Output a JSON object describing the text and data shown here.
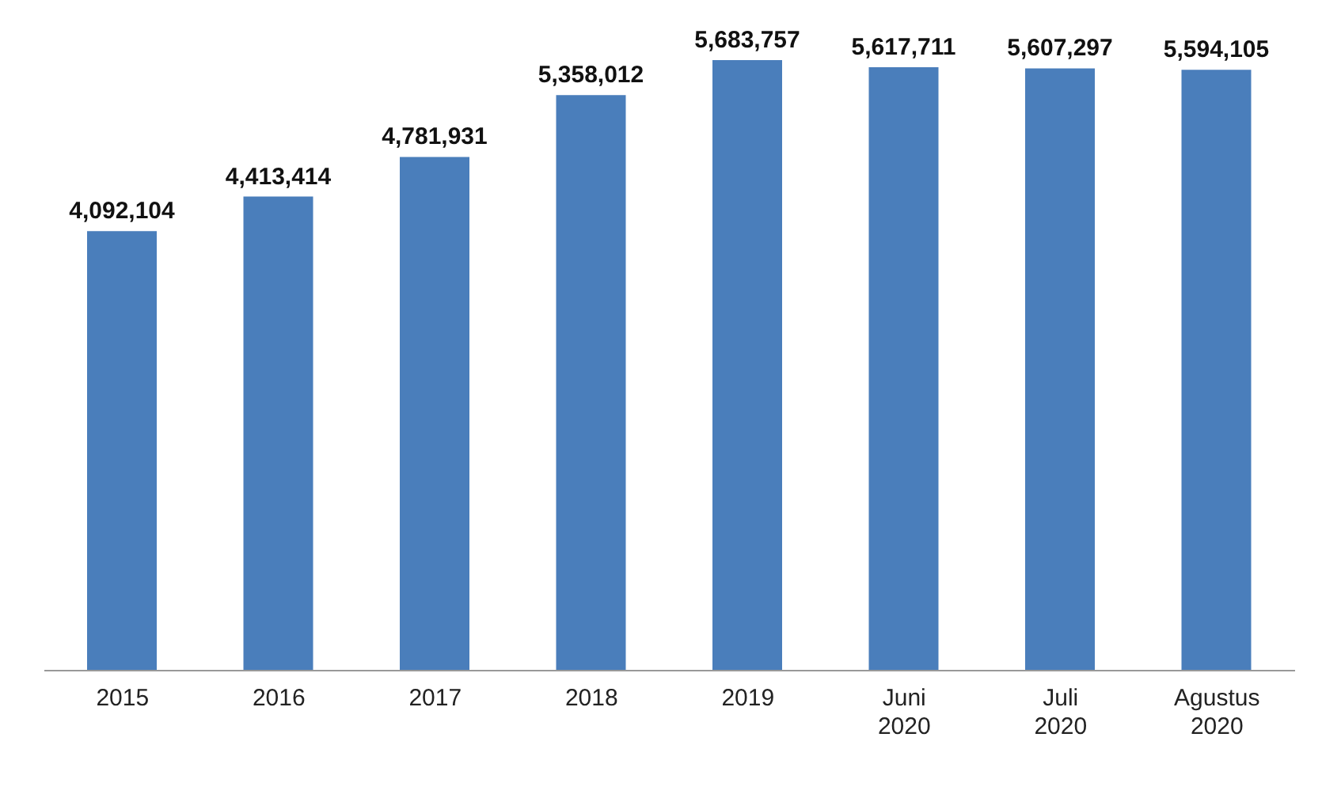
{
  "chart_data": {
    "type": "bar",
    "categories": [
      "2015",
      "2016",
      "2017",
      "2018",
      "2019",
      "Juni 2020",
      "Juli 2020",
      "Agustus 2020"
    ],
    "values": [
      4092104,
      4413414,
      4781931,
      5358012,
      5683757,
      5617711,
      5607297,
      5594105
    ],
    "value_labels": [
      "4,092,104",
      "4,413,414",
      "4,781,931",
      "5,358,012",
      "5,683,757",
      "5,617,711",
      "5,607,297",
      "5,594,105"
    ],
    "color": "#4a7ebb",
    "grid": false,
    "legend": false
  }
}
